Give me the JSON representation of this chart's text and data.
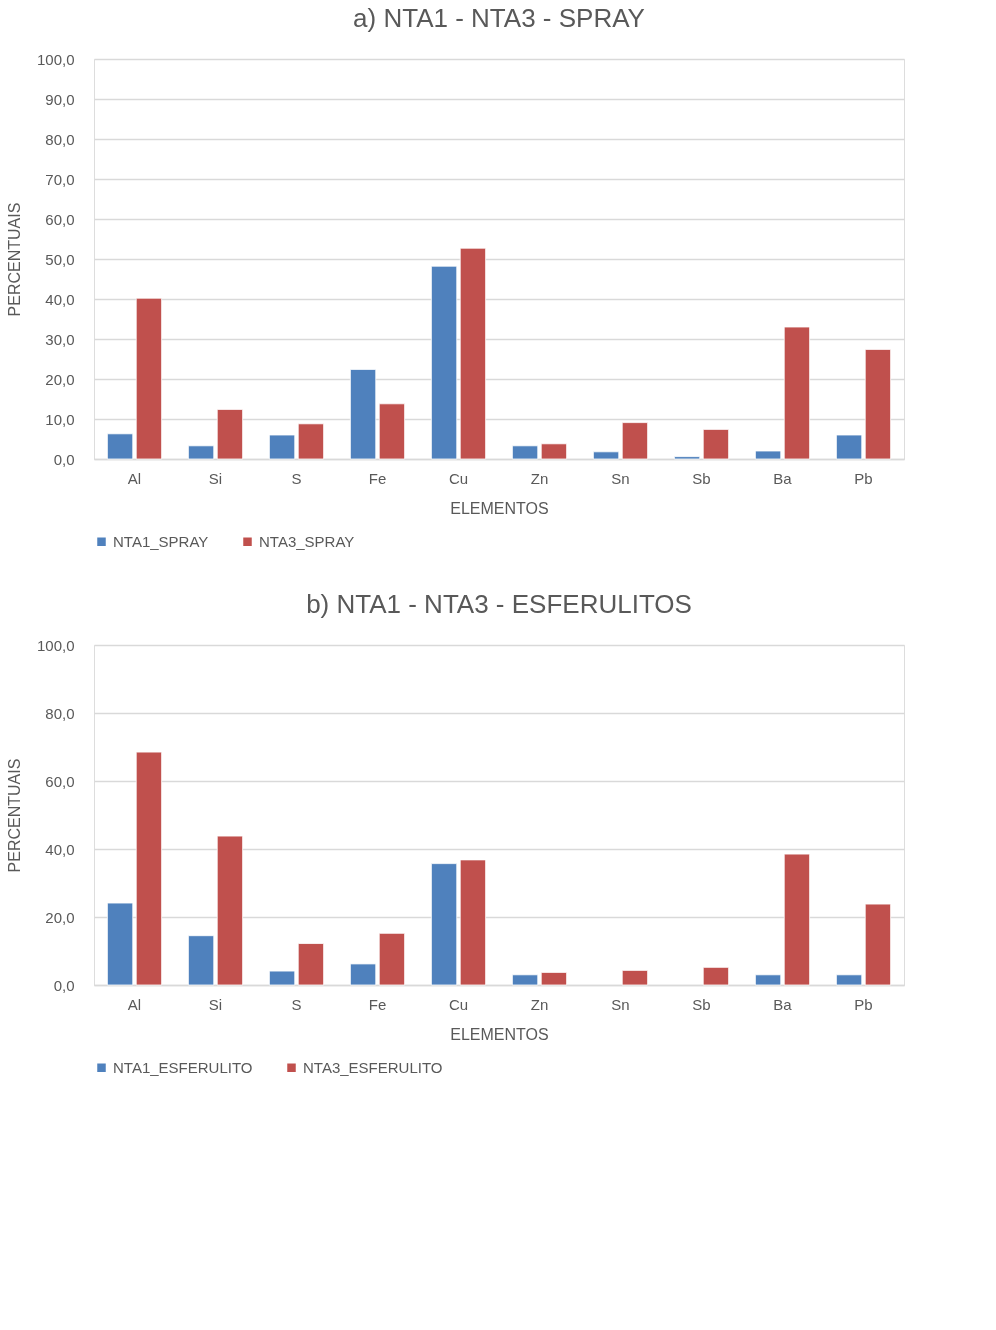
{
  "chart_data": [
    {
      "type": "bar",
      "title": "a) NTA1 - NTA3 - SPRAY",
      "xlabel": "ELEMENTOS",
      "ylabel": "PERCENTUAIS",
      "categories": [
        "Al",
        "Si",
        "S",
        "Fe",
        "Cu",
        "Zn",
        "Sn",
        "Sb",
        "Ba",
        "Pb"
      ],
      "series": [
        {
          "name": "NTA1_SPRAY",
          "color": "#4f81bd",
          "values": [
            6.3,
            3.3,
            6.0,
            22.4,
            48.2,
            3.3,
            1.8,
            0.6,
            2.0,
            6.0
          ]
        },
        {
          "name": "NTA3_SPRAY",
          "color": "#c0504d",
          "values": [
            40.2,
            12.4,
            8.8,
            13.8,
            52.7,
            3.8,
            9.1,
            7.4,
            33.0,
            27.4
          ]
        }
      ],
      "ylim": [
        0,
        100
      ],
      "yticks": [
        {
          "value": 0,
          "label": "0,0"
        },
        {
          "value": 10,
          "label": "10,0"
        },
        {
          "value": 20,
          "label": "20,0"
        },
        {
          "value": 30,
          "label": "30,0"
        },
        {
          "value": 40,
          "label": "40,0"
        },
        {
          "value": 50,
          "label": "50,0"
        },
        {
          "value": 60,
          "label": "60,0"
        },
        {
          "value": 70,
          "label": "70,0"
        },
        {
          "value": 80,
          "label": "80,0"
        },
        {
          "value": 90,
          "label": "90,0"
        },
        {
          "value": 100,
          "label": "100,0"
        }
      ],
      "grid": "y",
      "legend": "bottom"
    },
    {
      "type": "bar",
      "title": "b) NTA1 - NTA3 - ESFERULITOS",
      "xlabel": "ELEMENTOS",
      "ylabel": "PERCENTUAIS",
      "categories": [
        "Al",
        "Si",
        "S",
        "Fe",
        "Cu",
        "Zn",
        "Sn",
        "Sb",
        "Ba",
        "Pb"
      ],
      "series": [
        {
          "name": "NTA1_ESFERULITO",
          "color": "#4f81bd",
          "values": [
            24.1,
            14.5,
            4.1,
            6.2,
            35.7,
            3.0,
            null,
            null,
            3.0,
            3.0
          ]
        },
        {
          "name": "NTA3_ESFERULITO",
          "color": "#c0504d",
          "values": [
            68.5,
            43.8,
            12.2,
            15.2,
            36.8,
            3.7,
            4.3,
            5.2,
            38.5,
            23.8
          ]
        }
      ],
      "ylim": [
        0,
        100
      ],
      "yticks": [
        {
          "value": 0,
          "label": "0,0"
        },
        {
          "value": 20,
          "label": "20,0"
        },
        {
          "value": 40,
          "label": "40,0"
        },
        {
          "value": 60,
          "label": "60,0"
        },
        {
          "value": 80,
          "label": "80,0"
        },
        {
          "value": 100,
          "label": "100,0"
        }
      ],
      "grid": "y",
      "legend": "bottom"
    }
  ]
}
